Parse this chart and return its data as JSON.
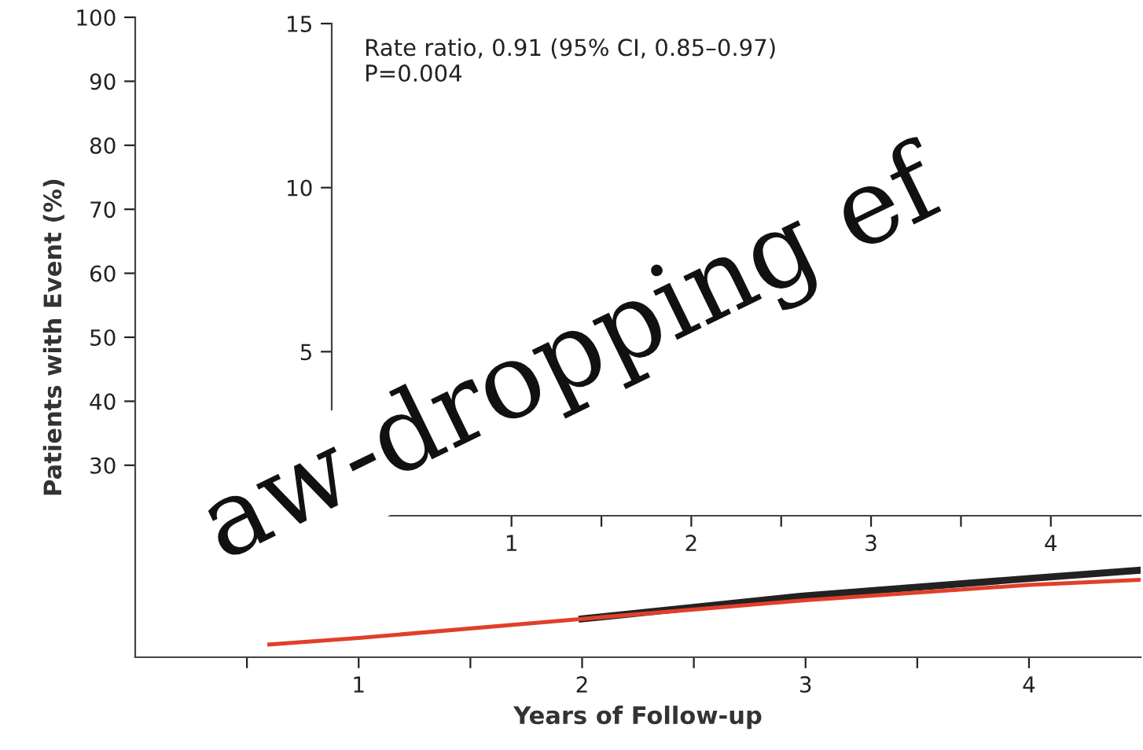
{
  "chart_data": [
    {
      "type": "line",
      "xlabel": "Years of Follow-up",
      "ylabel": "Patients with Event (%)",
      "x": [
        0.6,
        1,
        2,
        3,
        4,
        4.5
      ],
      "series": [
        {
          "color": "#222222",
          "values": [
            null,
            null,
            6,
            9.6,
            12.3,
            13.6
          ]
        },
        {
          "color": "#e0402a",
          "values": [
            2,
            3,
            6,
            8.9,
            11.3,
            12.1
          ]
        }
      ],
      "xlim": [
        0,
        4.5
      ],
      "xticks": [
        {
          "value": 0.5,
          "label": null
        },
        1,
        {
          "value": 1.5,
          "label": null
        },
        2,
        {
          "value": 2.5,
          "label": null
        },
        3,
        {
          "value": 3.5,
          "label": null
        },
        4
      ],
      "ylim": [
        0,
        100
      ],
      "yticks": [
        30,
        40,
        50,
        60,
        70,
        80,
        90,
        100
      ],
      "grid": false,
      "legend": false,
      "marker": "none",
      "line_style": "solid",
      "annotations": [
        "aw-dropping ef"
      ]
    },
    {
      "type": "line",
      "xlim": [
        0,
        4.5
      ],
      "xticks": [
        1,
        {
          "value": 1.5,
          "label": null
        },
        2,
        {
          "value": 2.5,
          "label": null
        },
        3,
        {
          "value": 3.5,
          "label": null
        },
        4
      ],
      "ylim": [
        0,
        15
      ],
      "yticks": [
        5,
        10,
        15
      ],
      "grid": false,
      "legend": false,
      "annotations": [
        "Rate ratio, 0.91 (95% CI, 0.85–0.97)\nP=0.004"
      ]
    }
  ]
}
